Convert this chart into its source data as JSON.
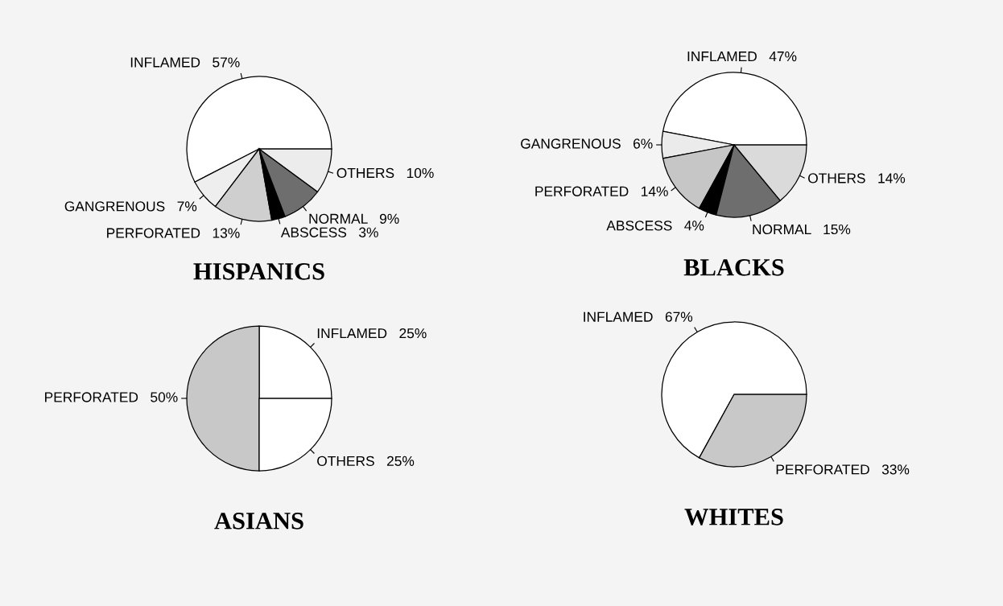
{
  "chart_data": [
    {
      "type": "pie",
      "title": "HISPANICS",
      "categories": [
        "INFLAMED",
        "GANGRENOUS",
        "PERFORATED",
        "ABSCESS",
        "NORMAL",
        "OTHERS"
      ],
      "values": [
        57,
        7,
        13,
        3,
        9,
        10
      ],
      "value_labels": [
        "57%",
        "7%",
        "13%",
        "3%",
        "9%",
        "10%"
      ],
      "colors": [
        "#ffffff",
        "#eeeeee",
        "#cfcfcf",
        "#000000",
        "#6e6e6e",
        "#ececec"
      ]
    },
    {
      "type": "pie",
      "title": "BLACKS",
      "categories": [
        "INFLAMED",
        "GANGRENOUS",
        "PERFORATED",
        "ABSCESS",
        "NORMAL",
        "OTHERS"
      ],
      "values": [
        47,
        6,
        14,
        4,
        15,
        14
      ],
      "value_labels": [
        "47%",
        "6%",
        "14%",
        "4%",
        "15%",
        "14%"
      ],
      "colors": [
        "#ffffff",
        "#ebebeb",
        "#c6c6c6",
        "#000000",
        "#6e6e6e",
        "#dadada"
      ]
    },
    {
      "type": "pie",
      "title": "ASIANS",
      "categories": [
        "INFLAMED",
        "PERFORATED",
        "OTHERS"
      ],
      "values": [
        25,
        50,
        25
      ],
      "value_labels": [
        "25%",
        "50%",
        "25%"
      ],
      "colors": [
        "#ffffff",
        "#c8c8c8",
        "#ffffff"
      ]
    },
    {
      "type": "pie",
      "title": "WHITES",
      "categories": [
        "INFLAMED",
        "PERFORATED"
      ],
      "values": [
        67,
        33
      ],
      "value_labels": [
        "67%",
        "33%"
      ],
      "colors": [
        "#ffffff",
        "#c8c8c8"
      ]
    }
  ]
}
